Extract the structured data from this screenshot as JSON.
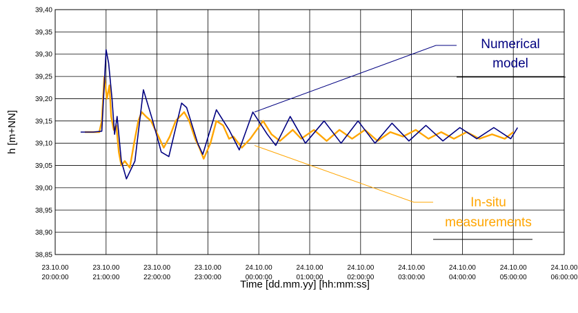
{
  "chart_data": {
    "type": "line",
    "xlabel": "Time [dd.mm.yy] [hh:mm:ss]",
    "ylabel": "h [m+NN]",
    "ylim": [
      38.85,
      39.4
    ],
    "y_ticks": [
      "39,40",
      "39,35",
      "39,30",
      "39,25",
      "39,20",
      "39,15",
      "39,10",
      "39,05",
      "39,00",
      "38,95",
      "38,90",
      "38,85"
    ],
    "x_range": [
      "23.10.00 20:00:00",
      "24.10.00 06:00:00"
    ],
    "x_ticks": [
      {
        "date": "23.10.00",
        "time": "20:00:00"
      },
      {
        "date": "23.10.00",
        "time": "21:00:00"
      },
      {
        "date": "23.10.00",
        "time": "22:00:00"
      },
      {
        "date": "23.10.00",
        "time": "23:00:00"
      },
      {
        "date": "24.10.00",
        "time": "00:00:00"
      },
      {
        "date": "24.10.00",
        "time": "01:00:00"
      },
      {
        "date": "24.10.00",
        "time": "02:00:00"
      },
      {
        "date": "24.10.00",
        "time": "03:00:00"
      },
      {
        "date": "24.10.00",
        "time": "04:00:00"
      },
      {
        "date": "24.10.00",
        "time": "05:00:00"
      },
      {
        "date": "24.10.00",
        "time": "06:00:00"
      }
    ],
    "grid": true,
    "series": [
      {
        "name": "Numerical model",
        "color": "#000080",
        "points": [
          [
            "23.10.00 20:30:00",
            39.125
          ],
          [
            "23.10.00 20:45:00",
            39.125
          ],
          [
            "23.10.00 20:55:00",
            39.127
          ],
          [
            "23.10.00 20:57:00",
            39.2
          ],
          [
            "23.10.00 21:00:00",
            39.31
          ],
          [
            "23.10.00 21:03:00",
            39.28
          ],
          [
            "23.10.00 21:07:00",
            39.2
          ],
          [
            "23.10.00 21:10:00",
            39.12
          ],
          [
            "23.10.00 21:13:00",
            39.16
          ],
          [
            "23.10.00 21:18:00",
            39.06
          ],
          [
            "23.10.00 21:24:00",
            39.02
          ],
          [
            "23.10.00 21:34:00",
            39.06
          ],
          [
            "23.10.00 21:44:00",
            39.22
          ],
          [
            "23.10.00 21:55:00",
            39.15
          ],
          [
            "23.10.00 22:05:00",
            39.08
          ],
          [
            "23.10.00 22:14:00",
            39.07
          ],
          [
            "23.10.00 22:29:00",
            39.19
          ],
          [
            "23.10.00 22:35:00",
            39.18
          ],
          [
            "23.10.00 22:48:00",
            39.1
          ],
          [
            "23.10.00 22:54:00",
            39.075
          ],
          [
            "23.10.00 23:10:00",
            39.175
          ],
          [
            "23.10.00 23:25:00",
            39.13
          ],
          [
            "23.10.00 23:37:00",
            39.085
          ],
          [
            "23.10.00 23:53:00",
            39.17
          ],
          [
            "24.10.00 00:10:00",
            39.12
          ],
          [
            "24.10.00 00:20:00",
            39.095
          ],
          [
            "24.10.00 00:37:00",
            39.16
          ],
          [
            "24.10.00 00:55:00",
            39.1
          ],
          [
            "24.10.00 01:17:00",
            39.15
          ],
          [
            "24.10.00 01:37:00",
            39.1
          ],
          [
            "24.10.00 01:57:00",
            39.15
          ],
          [
            "24.10.00 02:17:00",
            39.1
          ],
          [
            "24.10.00 02:37:00",
            39.145
          ],
          [
            "24.10.00 02:57:00",
            39.105
          ],
          [
            "24.10.00 03:17:00",
            39.14
          ],
          [
            "24.10.00 03:37:00",
            39.105
          ],
          [
            "24.10.00 03:57:00",
            39.135
          ],
          [
            "24.10.00 04:17:00",
            39.11
          ],
          [
            "24.10.00 04:37:00",
            39.135
          ],
          [
            "24.10.00 04:57:00",
            39.11
          ],
          [
            "24.10.00 05:05:00",
            39.135
          ]
        ]
      },
      {
        "name": "In-situ measurements",
        "color": "#FFA500",
        "points": [
          [
            "23.10.00 20:35:00",
            39.125
          ],
          [
            "23.10.00 20:52:00",
            39.125
          ],
          [
            "23.10.00 20:55:00",
            39.15
          ],
          [
            "23.10.00 20:58:00",
            39.25
          ],
          [
            "23.10.00 21:01:00",
            39.2
          ],
          [
            "23.10.00 21:04:00",
            39.23
          ],
          [
            "23.10.00 21:06:00",
            39.16
          ],
          [
            "23.10.00 21:09:00",
            39.13
          ],
          [
            "23.10.00 21:12:00",
            39.14
          ],
          [
            "23.10.00 21:15:00",
            39.08
          ],
          [
            "23.10.00 21:18:00",
            39.05
          ],
          [
            "23.10.00 21:22:00",
            39.06
          ],
          [
            "23.10.00 21:28:00",
            39.045
          ],
          [
            "23.10.00 21:33:00",
            39.1
          ],
          [
            "23.10.00 21:38:00",
            39.15
          ],
          [
            "23.10.00 21:42:00",
            39.17
          ],
          [
            "23.10.00 21:47:00",
            39.16
          ],
          [
            "23.10.00 21:53:00",
            39.15
          ],
          [
            "23.10.00 22:03:00",
            39.11
          ],
          [
            "23.10.00 22:08:00",
            39.09
          ],
          [
            "23.10.00 22:15:00",
            39.115
          ],
          [
            "23.10.00 22:22:00",
            39.15
          ],
          [
            "23.10.00 22:32:00",
            39.17
          ],
          [
            "23.10.00 22:38:00",
            39.15
          ],
          [
            "23.10.00 22:45:00",
            39.11
          ],
          [
            "23.10.00 22:50:00",
            39.09
          ],
          [
            "23.10.00 22:55:00",
            39.065
          ],
          [
            "23.10.00 23:03:00",
            39.1
          ],
          [
            "23.10.00 23:10:00",
            39.15
          ],
          [
            "23.10.00 23:18:00",
            39.14
          ],
          [
            "23.10.00 23:25:00",
            39.11
          ],
          [
            "23.10.00 23:30:00",
            39.115
          ],
          [
            "23.10.00 23:40:00",
            39.09
          ],
          [
            "23.10.00 23:50:00",
            39.11
          ],
          [
            "24.10.00 00:05:00",
            39.15
          ],
          [
            "24.10.00 00:15:00",
            39.12
          ],
          [
            "24.10.00 00:25:00",
            39.105
          ],
          [
            "24.10.00 00:40:00",
            39.13
          ],
          [
            "24.10.00 00:50:00",
            39.11
          ],
          [
            "24.10.00 01:05:00",
            39.13
          ],
          [
            "24.10.00 01:20:00",
            39.105
          ],
          [
            "24.10.00 01:35:00",
            39.13
          ],
          [
            "24.10.00 01:50:00",
            39.11
          ],
          [
            "24.10.00 02:05:00",
            39.13
          ],
          [
            "24.10.00 02:20:00",
            39.105
          ],
          [
            "24.10.00 02:35:00",
            39.125
          ],
          [
            "24.10.00 02:50:00",
            39.115
          ],
          [
            "24.10.00 03:05:00",
            39.13
          ],
          [
            "24.10.00 03:20:00",
            39.11
          ],
          [
            "24.10.00 03:35:00",
            39.125
          ],
          [
            "24.10.00 03:50:00",
            39.11
          ],
          [
            "24.10.00 04:05:00",
            39.125
          ],
          [
            "24.10.00 04:20:00",
            39.11
          ],
          [
            "24.10.00 04:35:00",
            39.12
          ],
          [
            "24.10.00 04:50:00",
            39.11
          ],
          [
            "24.10.00 05:00:00",
            39.125
          ]
        ]
      }
    ],
    "annotations": [
      {
        "lines": [
          "Numerical",
          "model"
        ],
        "color": "#000080",
        "points_to": [
          "23.10.00 23:55:00",
          39.17
        ]
      },
      {
        "lines": [
          "In-situ",
          "measurements"
        ],
        "color": "#FFA500",
        "points_to": [
          "23.10.00 23:55:00",
          39.095
        ]
      }
    ]
  }
}
